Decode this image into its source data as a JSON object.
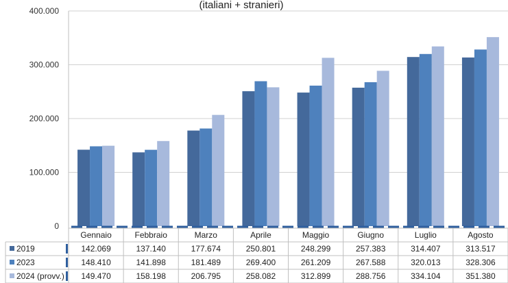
{
  "chart_data": {
    "type": "bar",
    "title": "(italiani + stranieri)",
    "categories": [
      "Gennaio",
      "Febbraio",
      "Marzo",
      "Aprile",
      "Maggio",
      "Giugno",
      "Luglio",
      "Agosto"
    ],
    "series": [
      {
        "name": "2019",
        "color": "#44699b",
        "values": [
          142069,
          137140,
          177674,
          250801,
          248299,
          257383,
          314407,
          313517
        ]
      },
      {
        "name": "2023",
        "color": "#4e81bd",
        "values": [
          148410,
          141898,
          181489,
          269400,
          261209,
          267588,
          320013,
          328306
        ]
      },
      {
        "name": "2024 (provv.)",
        "color": "#a7b9dc",
        "values": [
          149470,
          158198,
          206795,
          258082,
          312899,
          288756,
          334104,
          351380
        ]
      }
    ],
    "table_values": [
      [
        "142.069",
        "137.140",
        "177.674",
        "250.801",
        "248.299",
        "257.383",
        "314.407",
        "313.517"
      ],
      [
        "148.410",
        "141.898",
        "181.489",
        "269.400",
        "261.209",
        "267.588",
        "320.013",
        "328.306"
      ],
      [
        "149.470",
        "158.198",
        "206.795",
        "258.082",
        "312.899",
        "288.756",
        "334.104",
        "351.380"
      ]
    ],
    "ylim": [
      0,
      400000
    ],
    "yticks": [
      0,
      100000,
      200000,
      300000,
      400000
    ],
    "ytick_labels": [
      "0",
      "100.000",
      "200.000",
      "300.000",
      "400.000"
    ],
    "grid": true,
    "legend": "data-table"
  }
}
